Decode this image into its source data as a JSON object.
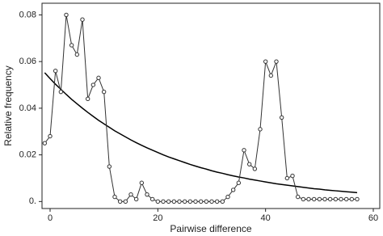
{
  "chart_data": {
    "type": "line",
    "x_label": "Pairwise difference",
    "y_label": "Relative frequency",
    "x": [
      -1,
      0,
      1,
      2,
      3,
      4,
      5,
      6,
      7,
      8,
      9,
      10,
      11,
      12,
      13,
      14,
      15,
      16,
      17,
      18,
      19,
      20,
      21,
      22,
      23,
      24,
      25,
      26,
      27,
      28,
      29,
      30,
      31,
      32,
      33,
      34,
      35,
      36,
      37,
      38,
      39,
      40,
      41,
      42,
      43,
      44,
      45,
      46,
      47,
      48,
      49,
      50,
      51,
      52,
      53,
      54,
      55,
      56,
      57
    ],
    "series": [
      {
        "color": "#333333",
        "markers": true,
        "values": [
          0.025,
          0.028,
          0.056,
          0.047,
          0.08,
          0.067,
          0.063,
          0.078,
          0.044,
          0.05,
          0.053,
          0.047,
          0.015,
          0.002,
          0,
          0,
          0.003,
          0.001,
          0.008,
          0.003,
          0.001,
          0,
          0,
          0,
          0,
          0,
          0,
          0,
          0,
          0,
          0,
          0,
          0,
          0,
          0.002,
          0.005,
          0.008,
          0.022,
          0.016,
          0.014,
          0.031,
          0.06,
          0.054,
          0.06,
          0.036,
          0.01,
          0.011,
          0.002,
          0.001,
          0.001,
          0.001,
          0.001,
          0.001,
          0.001,
          0.001,
          0.001,
          0.001,
          0.001,
          0.001
        ]
      },
      {
        "color": "#000000",
        "markers": false,
        "values": [
          0.0552,
          0.0527,
          0.0503,
          0.0481,
          0.0459,
          0.0438,
          0.0419,
          0.04,
          0.0382,
          0.0365,
          0.0348,
          0.0333,
          0.0318,
          0.0303,
          0.029,
          0.0277,
          0.0264,
          0.0252,
          0.0241,
          0.023,
          0.022,
          0.021,
          0.02,
          0.0191,
          0.0183,
          0.0175,
          0.0167,
          0.0159,
          0.0152,
          0.0145,
          0.0139,
          0.0132,
          0.0126,
          0.0121,
          0.0115,
          0.011,
          0.0105,
          0.0101,
          0.0096,
          0.0092,
          0.0088,
          0.0084,
          0.008,
          0.0076,
          0.0073,
          0.007,
          0.0067,
          0.0064,
          0.0061,
          0.0058,
          0.0055,
          0.0053,
          0.005,
          0.0048,
          0.0046,
          0.0044,
          0.0042,
          0.004,
          0.0038
        ]
      }
    ],
    "xlim": [
      -1.5,
      61.2
    ],
    "xticks": [
      0,
      20,
      40,
      60
    ],
    "ylim": [
      -0.003,
      0.085
    ],
    "yticks": [
      {
        "value": 0,
        "label": "0."
      },
      0.02,
      0.04,
      0.06,
      0.08
    ],
    "grid": false
  }
}
